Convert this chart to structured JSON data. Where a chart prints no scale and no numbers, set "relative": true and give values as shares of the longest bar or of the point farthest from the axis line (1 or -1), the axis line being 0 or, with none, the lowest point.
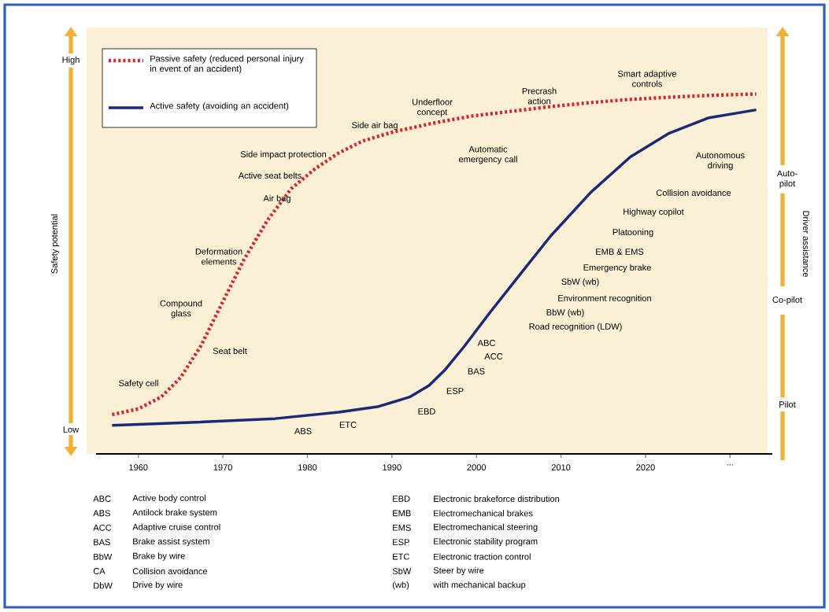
{
  "chart_data": {
    "type": "line",
    "relative": true,
    "ylabel": "Safety potential",
    "y2label": "Driver assistance",
    "xlim": [
      1955,
      2035
    ],
    "xticks": [
      1960,
      1970,
      1980,
      1990,
      2000,
      2010,
      2020,
      {
        "value": 2030,
        "label": "..."
      }
    ],
    "legend": "top left",
    "marker": "none",
    "series": [
      {
        "name": "Passive safety (reduced personal injury in event of an accident)",
        "color": "#d7262c",
        "line_style": "dotted",
        "x": [
          1956.9,
          1960,
          1962.7,
          1965,
          1967.4,
          1969.7,
          1972.5,
          1975.3,
          1978.1,
          1980.9,
          1983.7,
          1986.5,
          1990.2,
          1994.9,
          1999.5,
          2004.2,
          2008.8,
          2013.5,
          2018.2,
          2022.8,
          2027.5,
          2033.1
        ],
        "values": [
          0.109,
          0.125,
          0.158,
          0.212,
          0.3,
          0.409,
          0.54,
          0.65,
          0.737,
          0.792,
          0.836,
          0.869,
          0.895,
          0.919,
          0.939,
          0.952,
          0.965,
          0.976,
          0.985,
          0.991,
          0.996,
          1.0
        ]
      },
      {
        "name": "Active safety (avoiding an accident)",
        "color": "#1b2a78",
        "line_style": "solid",
        "x": [
          1956.9,
          1966.9,
          1976.2,
          1983.7,
          1988.3,
          1992.1,
          1994.4,
          1996.3,
          1998.6,
          2001.4,
          2005.1,
          2008.8,
          2013.5,
          2018.2,
          2022.8,
          2027.5,
          2033.1
        ],
        "values": [
          0.079,
          0.088,
          0.098,
          0.116,
          0.131,
          0.158,
          0.19,
          0.234,
          0.3,
          0.387,
          0.497,
          0.606,
          0.726,
          0.825,
          0.891,
          0.934,
          0.956
        ]
      }
    ],
    "annotations": [
      "Safety cell",
      "Seat belt",
      "Compound glass",
      "Deformation elements",
      "Air bag",
      "Active seat belts",
      "Side impact protection",
      "Side air bag",
      "Underfloor concept",
      "Automatic emergency call",
      "Precrash action",
      "Smart adaptive controls",
      "ABS",
      "ETC",
      "EBD",
      "ESP",
      "BAS",
      "ABC",
      "ACC",
      "Road recognition (LDW)",
      "BbW (wb)",
      "Environment recognition",
      "SbW (wb)",
      "Emergency brake",
      "EMB & EMS",
      "Platooning",
      "Highway copilot",
      "Collision avoidance",
      "Autonomous driving",
      "Low",
      "High",
      "Auto-pilot",
      "Co-pilot",
      "Pilot",
      "ABC",
      "Active body control",
      "ABS",
      "Antilock brake system",
      "ACC",
      "Adaptive cruise control",
      "BAS",
      "Brake assist system",
      "BbW",
      "Brake by wire",
      "CA",
      "Collision avoidance",
      "DbW",
      "Drive by wire",
      "EBD",
      "Electronic brakeforce distribution",
      "EMB",
      "Electromechanical brakes",
      "EMS",
      "Electromechanical steering",
      "ESP",
      "Electronic stability program",
      "ETC",
      "Electronic traction control",
      "SbW",
      "Steer by wire",
      "(wb)",
      "with mechanical backup"
    ]
  }
}
